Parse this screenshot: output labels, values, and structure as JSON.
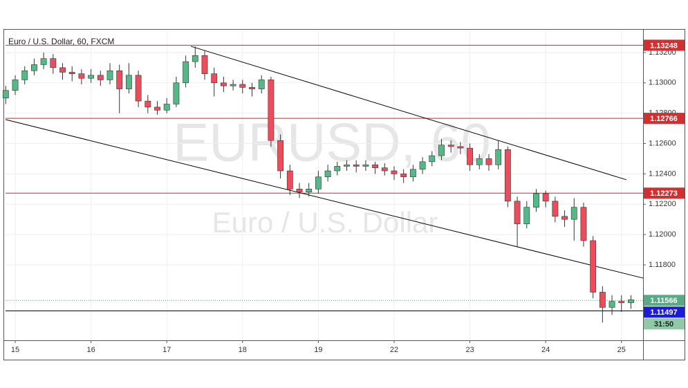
{
  "chart_data": {
    "type": "candlestick",
    "title": "Euro / U.S. Dollar, 60, FXCM",
    "watermark": {
      "symbol": "EURUSD, 60",
      "name": "Euro / U.S. Dollar"
    },
    "x": [
      -0.125,
      0,
      0.125,
      0.25,
      0.375,
      0.5,
      0.625,
      0.75,
      0.875,
      1,
      1.125,
      1.25,
      1.375,
      1.5,
      1.625,
      1.75,
      1.875,
      2,
      2.125,
      2.25,
      2.375,
      2.5,
      2.625,
      2.75,
      2.875,
      3,
      3.125,
      3.25,
      3.375,
      3.5,
      3.625,
      3.75,
      3.875,
      4,
      4.125,
      4.25,
      4.375,
      4.5,
      4.625,
      4.75,
      4.875,
      5,
      5.125,
      5.25,
      5.375,
      5.5,
      5.625,
      5.75,
      5.875,
      6,
      6.125,
      6.25,
      6.375,
      6.5,
      6.625,
      6.75,
      6.875,
      7,
      7.125,
      7.25,
      7.375,
      7.5,
      7.625,
      7.75,
      7.875,
      8,
      8.125
    ],
    "open": [
      1.129,
      1.1295,
      1.1302,
      1.1308,
      1.1312,
      1.1316,
      1.131,
      1.1307,
      1.1306,
      1.1303,
      1.1305,
      1.1302,
      1.1308,
      1.1296,
      1.1305,
      1.1288,
      1.1284,
      1.1282,
      1.1286,
      1.13,
      1.1314,
      1.1318,
      1.1306,
      1.13,
      1.1298,
      1.1299,
      1.1297,
      1.1296,
      1.1302,
      1.1262,
      1.1242,
      1.123,
      1.1228,
      1.123,
      1.1238,
      1.1242,
      1.1245,
      1.1246,
      1.1245,
      1.1246,
      1.1244,
      1.1242,
      1.124,
      1.1238,
      1.1243,
      1.1248,
      1.1252,
      1.1259,
      1.1258,
      1.1257,
      1.1246,
      1.125,
      1.1246,
      1.1256,
      1.1222,
      1.1207,
      1.1218,
      1.1227,
      1.1222,
      1.1212,
      1.121,
      1.1218,
      1.1196,
      1.1162,
      1.1152,
      1.1156,
      1.1155
    ],
    "high": [
      1.1298,
      1.1305,
      1.1311,
      1.1316,
      1.132,
      1.1319,
      1.1313,
      1.1311,
      1.1309,
      1.1309,
      1.1308,
      1.1313,
      1.1312,
      1.1313,
      1.1308,
      1.1292,
      1.1288,
      1.129,
      1.1304,
      1.1318,
      1.1324,
      1.1321,
      1.131,
      1.1304,
      1.1302,
      1.1302,
      1.13,
      1.1305,
      1.1304,
      1.1266,
      1.1246,
      1.1234,
      1.1234,
      1.1242,
      1.1246,
      1.1248,
      1.1249,
      1.1249,
      1.1249,
      1.1248,
      1.1247,
      1.1245,
      1.1243,
      1.1246,
      1.1251,
      1.1255,
      1.1263,
      1.1262,
      1.1261,
      1.126,
      1.1253,
      1.1253,
      1.1262,
      1.1258,
      1.1225,
      1.1222,
      1.123,
      1.1229,
      1.1225,
      1.1216,
      1.1224,
      1.1221,
      1.1199,
      1.1166,
      1.116,
      1.116,
      1.116
    ],
    "low": [
      1.1286,
      1.1292,
      1.1299,
      1.1305,
      1.1309,
      1.1306,
      1.1302,
      1.1301,
      1.1299,
      1.13,
      1.1298,
      1.1299,
      1.128,
      1.1293,
      1.1284,
      1.128,
      1.1279,
      1.128,
      1.1284,
      1.1297,
      1.131,
      1.1302,
      1.1291,
      1.1294,
      1.1295,
      1.1293,
      1.1291,
      1.1293,
      1.1258,
      1.1237,
      1.1226,
      1.1224,
      1.1225,
      1.1227,
      1.1235,
      1.1239,
      1.1242,
      1.1241,
      1.1242,
      1.124,
      1.1239,
      1.1236,
      1.1234,
      1.1235,
      1.124,
      1.1245,
      1.1249,
      1.1254,
      1.1253,
      1.1242,
      1.1243,
      1.1242,
      1.1243,
      1.1218,
      1.1192,
      1.1204,
      1.1215,
      1.1218,
      1.1208,
      1.1205,
      1.1196,
      1.1192,
      1.1158,
      1.1142,
      1.1147,
      1.1149,
      1.1151
    ],
    "close": [
      1.1295,
      1.1302,
      1.1308,
      1.1312,
      1.1316,
      1.131,
      1.1307,
      1.1306,
      1.1303,
      1.1305,
      1.1302,
      1.1308,
      1.1296,
      1.1305,
      1.1288,
      1.1284,
      1.1282,
      1.1286,
      1.13,
      1.1314,
      1.1318,
      1.1306,
      1.13,
      1.1298,
      1.1299,
      1.1297,
      1.1296,
      1.1302,
      1.1262,
      1.1242,
      1.123,
      1.1228,
      1.123,
      1.1238,
      1.1242,
      1.1245,
      1.1246,
      1.1245,
      1.1246,
      1.1244,
      1.1242,
      1.124,
      1.1238,
      1.1243,
      1.1248,
      1.1252,
      1.1259,
      1.1258,
      1.1257,
      1.1246,
      1.125,
      1.1246,
      1.1256,
      1.1222,
      1.1207,
      1.1218,
      1.1227,
      1.1222,
      1.1212,
      1.121,
      1.1218,
      1.1196,
      1.1162,
      1.1152,
      1.1156,
      1.1155,
      1.1157
    ],
    "up_color": "#53b987",
    "down_color": "#eb4d5c",
    "xlim": [
      -0.128,
      8.285
    ],
    "xticks": [
      {
        "value": 0,
        "label": "15"
      },
      {
        "value": 1,
        "label": "16"
      },
      {
        "value": 2,
        "label": "17"
      },
      {
        "value": 3,
        "label": "18"
      },
      {
        "value": 4,
        "label": "19"
      },
      {
        "value": 5,
        "label": "22"
      },
      {
        "value": 6,
        "label": "23"
      },
      {
        "value": 7,
        "label": "24"
      },
      {
        "value": 8,
        "label": "25"
      }
    ],
    "ylim": [
      1.11303,
      1.13341
    ],
    "yticks": [
      {
        "value": 1.118,
        "label": "1.11800"
      },
      {
        "value": 1.12,
        "label": "1.12000"
      },
      {
        "value": 1.122,
        "label": "1.12200"
      },
      {
        "value": 1.124,
        "label": "1.12400"
      },
      {
        "value": 1.126,
        "label": "1.12600"
      },
      {
        "value": 1.128,
        "label": "1.12800"
      },
      {
        "value": 1.13,
        "label": "1.13000"
      },
      {
        "value": 1.132,
        "label": "1.13200"
      }
    ],
    "grid": true,
    "levels": [
      {
        "value": 1.13248,
        "line_color": "#c62828",
        "label_color": "#d32f2f"
      },
      {
        "value": 1.12766,
        "line_color": "#c62828",
        "label_color": "#d32f2f"
      },
      {
        "value": 1.12273,
        "line_color": "#c62828",
        "label_color": "#d32f2f"
      },
      {
        "value": 1.11497,
        "line_color": "#000000",
        "label_color": "#1c1cd8"
      }
    ],
    "current": {
      "value": 1.11566,
      "countdown": "31:50",
      "color": "#5aa985"
    },
    "trendlines": [
      {
        "x": [
          2.318,
          8.066
        ],
        "y": [
          1.13241,
          1.12361
        ],
        "color": "#000000"
      },
      {
        "x": [
          -0.128,
          8.285
        ],
        "y": [
          1.12758,
          1.11713
        ],
        "color": "#000000"
      }
    ]
  }
}
